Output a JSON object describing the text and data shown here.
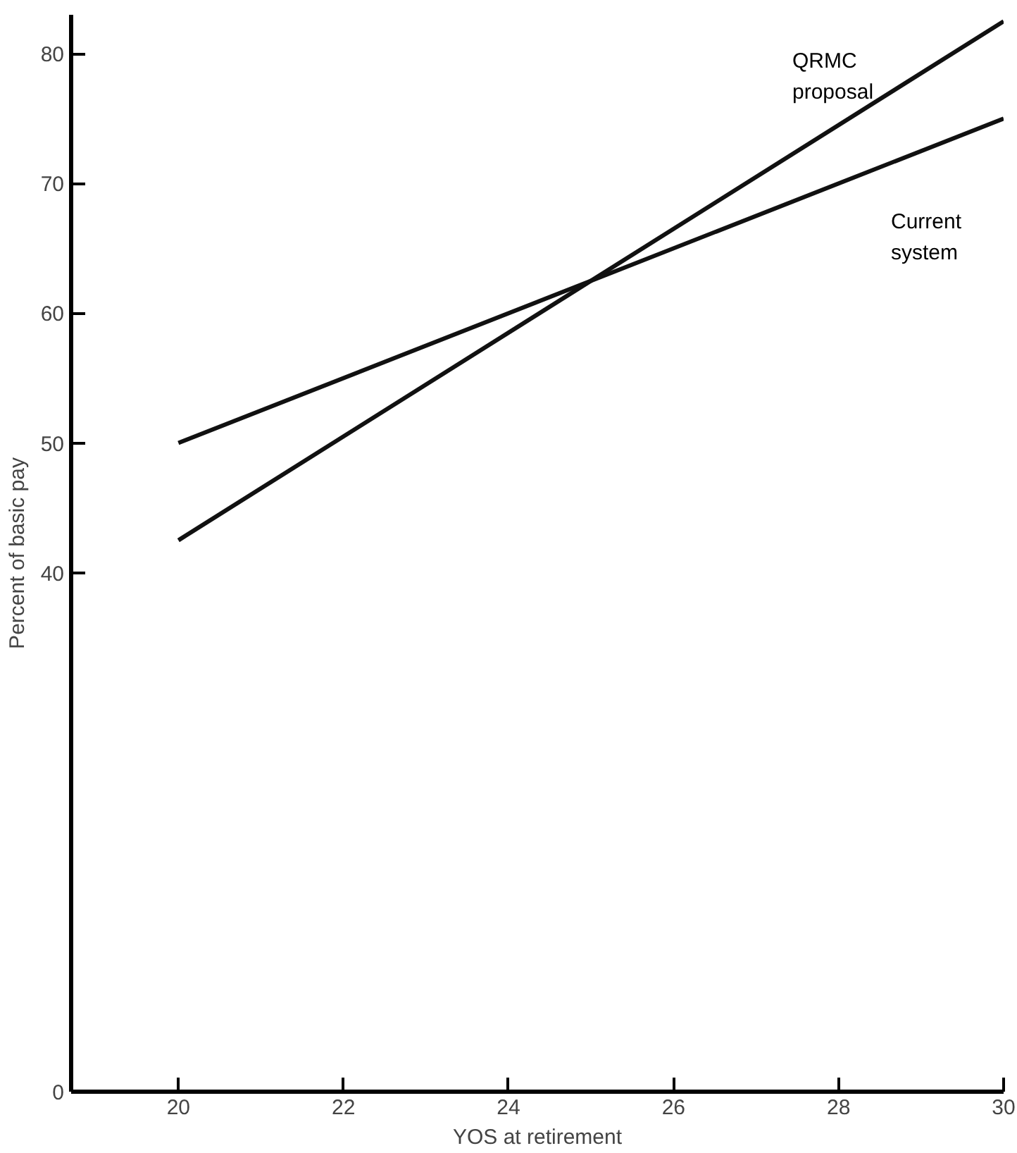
{
  "chart_data": {
    "type": "line",
    "xlabel": "YOS at retirement",
    "ylabel": "Percent of basic pay",
    "x": [
      20,
      30
    ],
    "series": [
      {
        "name": "QRMC\nproposal",
        "color": "#111111",
        "values": [
          42.5,
          82.5
        ]
      },
      {
        "name": "Current\nsystem",
        "color": "#111111",
        "values": [
          50,
          75
        ]
      }
    ],
    "xlim": [
      18.7,
      30
    ],
    "xticks": [
      20,
      22,
      24,
      26,
      28,
      30
    ],
    "ylim": [
      0,
      83
    ],
    "yticks": [
      0,
      40,
      50,
      60,
      70,
      80
    ],
    "grid": false
  }
}
